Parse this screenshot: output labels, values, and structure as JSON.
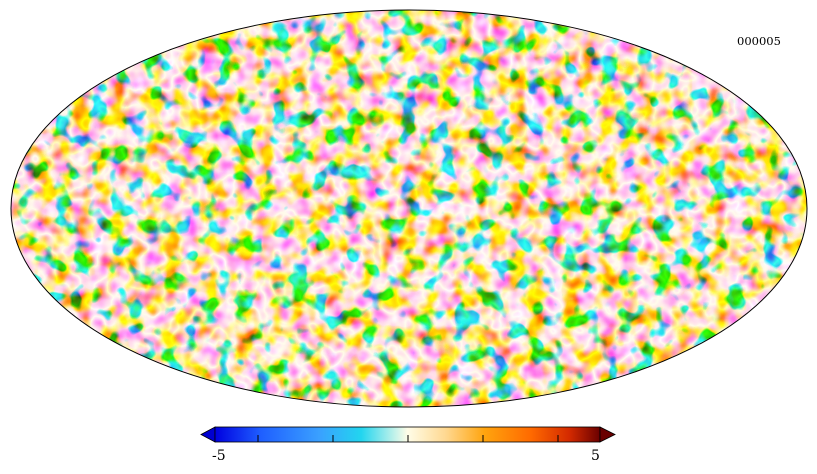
{
  "map": {
    "label": "000005",
    "projection": "mollweide",
    "colormap": [
      "#0000e0",
      "#1f5fff",
      "#3aa0ff",
      "#22d5ef",
      "#fffde8",
      "#ffd890",
      "#ffa40e",
      "#ff6a00",
      "#d42a00",
      "#6a0000"
    ]
  },
  "colorbar": {
    "min_label": "-5",
    "max_label": "5",
    "min": -5,
    "max": 5
  }
}
